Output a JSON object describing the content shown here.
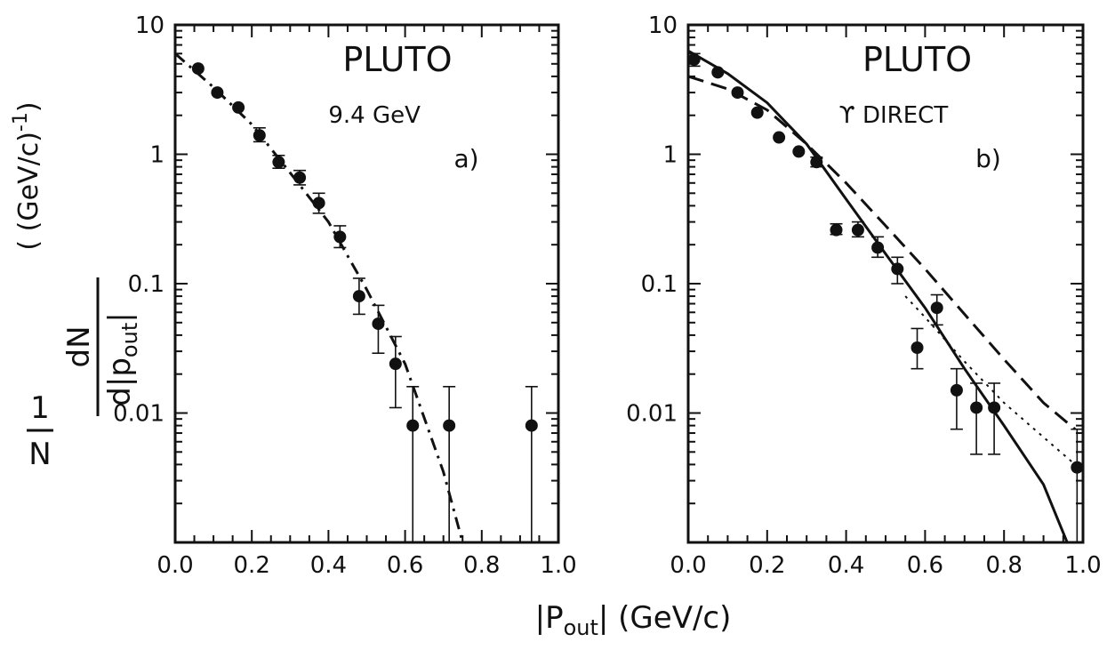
{
  "figure": {
    "ylabel": {
      "one": "1",
      "N": "N",
      "dN": "dN",
      "dpout": "d|p",
      "dpout_sub": "out",
      "dpout_end": "|",
      "units": "( (GeV/c)",
      "units_exp": "-1",
      "units_close": ")"
    },
    "xlabel": {
      "prefix": "|P",
      "sub": "out",
      "suffix": "| (GeV/c)"
    }
  },
  "chart_data": [
    {
      "type": "scatter",
      "panel": "a",
      "title_lines": [
        "PLUTO",
        "9.4 GeV",
        "a)"
      ],
      "x_ticks": [
        "0.0",
        "0.2",
        "0.4",
        "0.6",
        "0.8",
        "1.0"
      ],
      "y_ticks": [
        "0.01",
        "0.1",
        "1",
        "10"
      ],
      "xlim": [
        0.0,
        1.0
      ],
      "ylim": [
        0.001,
        10
      ],
      "yscale": "log",
      "series": [
        {
          "style": "points",
          "points": [
            {
              "x": 0.06,
              "y": 4.6
            },
            {
              "x": 0.11,
              "y": 3.0
            },
            {
              "x": 0.165,
              "y": 2.3
            },
            {
              "x": 0.22,
              "y": 1.4,
              "err": [
                1.25,
                1.6
              ]
            },
            {
              "x": 0.27,
              "y": 0.87,
              "err": [
                0.78,
                0.98
              ]
            },
            {
              "x": 0.325,
              "y": 0.66,
              "err": [
                0.58,
                0.75
              ]
            },
            {
              "x": 0.375,
              "y": 0.42,
              "err": [
                0.35,
                0.5
              ]
            },
            {
              "x": 0.43,
              "y": 0.23,
              "err": [
                0.19,
                0.28
              ]
            },
            {
              "x": 0.48,
              "y": 0.08,
              "err": [
                0.058,
                0.11
              ]
            },
            {
              "x": 0.53,
              "y": 0.049,
              "err": [
                0.029,
                0.068
              ]
            },
            {
              "x": 0.575,
              "y": 0.024,
              "err": [
                0.011,
                0.039
              ]
            },
            {
              "x": 0.62,
              "y": 0.008,
              "err": [
                0.001,
                0.016
              ]
            },
            {
              "x": 0.715,
              "y": 0.008,
              "err": [
                0.001,
                0.016
              ]
            },
            {
              "x": 0.93,
              "y": 0.008,
              "err": [
                0.001,
                0.016
              ]
            }
          ]
        },
        {
          "style": "dash-dot",
          "points": [
            {
              "x": 0.0,
              "y": 6.0
            },
            {
              "x": 0.1,
              "y": 3.3
            },
            {
              "x": 0.2,
              "y": 1.7
            },
            {
              "x": 0.3,
              "y": 0.72
            },
            {
              "x": 0.4,
              "y": 0.3
            },
            {
              "x": 0.5,
              "y": 0.09
            },
            {
              "x": 0.6,
              "y": 0.024
            },
            {
              "x": 0.7,
              "y": 0.0035
            },
            {
              "x": 0.75,
              "y": 0.001
            }
          ]
        }
      ]
    },
    {
      "type": "scatter",
      "panel": "b",
      "title_lines": [
        "PLUTO",
        "ϒ DIRECT",
        "b)"
      ],
      "x_ticks": [
        "0.0",
        "0.2",
        "0.4",
        "0.6",
        "0.8",
        "1.0"
      ],
      "y_ticks": [
        "0.01",
        "0.1",
        "1",
        "10"
      ],
      "xlim": [
        0.0,
        1.0
      ],
      "ylim": [
        0.001,
        10
      ],
      "yscale": "log",
      "series": [
        {
          "style": "points",
          "points": [
            {
              "x": 0.015,
              "y": 5.4,
              "err": [
                4.8,
                6.0
              ]
            },
            {
              "x": 0.075,
              "y": 4.3
            },
            {
              "x": 0.125,
              "y": 3.0
            },
            {
              "x": 0.175,
              "y": 2.1
            },
            {
              "x": 0.23,
              "y": 1.35
            },
            {
              "x": 0.28,
              "y": 1.05
            },
            {
              "x": 0.325,
              "y": 0.87,
              "err": [
                0.8,
                0.95
              ]
            },
            {
              "x": 0.375,
              "y": 0.26,
              "err": [
                0.24,
                0.29
              ]
            },
            {
              "x": 0.43,
              "y": 0.26,
              "err": [
                0.23,
                0.3
              ]
            },
            {
              "x": 0.48,
              "y": 0.19,
              "err": [
                0.16,
                0.23
              ]
            },
            {
              "x": 0.53,
              "y": 0.13,
              "err": [
                0.1,
                0.16
              ]
            },
            {
              "x": 0.58,
              "y": 0.032,
              "err": [
                0.022,
                0.045
              ]
            },
            {
              "x": 0.63,
              "y": 0.065,
              "err": [
                0.048,
                0.082
              ]
            },
            {
              "x": 0.68,
              "y": 0.015,
              "err": [
                0.0075,
                0.022
              ]
            },
            {
              "x": 0.73,
              "y": 0.011,
              "err": [
                0.0048,
                0.017
              ]
            },
            {
              "x": 0.775,
              "y": 0.011,
              "err": [
                0.0048,
                0.017
              ]
            },
            {
              "x": 0.985,
              "y": 0.0038,
              "err": [
                0.001,
                0.0075
              ]
            }
          ]
        },
        {
          "style": "solid",
          "points": [
            {
              "x": 0.0,
              "y": 6.3
            },
            {
              "x": 0.1,
              "y": 4.2
            },
            {
              "x": 0.2,
              "y": 2.5
            },
            {
              "x": 0.3,
              "y": 1.2
            },
            {
              "x": 0.4,
              "y": 0.45
            },
            {
              "x": 0.5,
              "y": 0.17
            },
            {
              "x": 0.6,
              "y": 0.065
            },
            {
              "x": 0.7,
              "y": 0.022
            },
            {
              "x": 0.8,
              "y": 0.008
            },
            {
              "x": 0.9,
              "y": 0.0028
            },
            {
              "x": 0.96,
              "y": 0.001
            }
          ]
        },
        {
          "style": "dashed",
          "points": [
            {
              "x": 0.0,
              "y": 4.0
            },
            {
              "x": 0.1,
              "y": 3.2
            },
            {
              "x": 0.2,
              "y": 2.2
            },
            {
              "x": 0.3,
              "y": 1.2
            },
            {
              "x": 0.4,
              "y": 0.6
            },
            {
              "x": 0.5,
              "y": 0.28
            },
            {
              "x": 0.6,
              "y": 0.13
            },
            {
              "x": 0.7,
              "y": 0.058
            },
            {
              "x": 0.8,
              "y": 0.026
            },
            {
              "x": 0.9,
              "y": 0.012
            },
            {
              "x": 0.98,
              "y": 0.0075
            }
          ]
        },
        {
          "style": "dotted",
          "points": [
            {
              "x": 0.55,
              "y": 0.08
            },
            {
              "x": 0.6,
              "y": 0.055
            },
            {
              "x": 0.7,
              "y": 0.025
            },
            {
              "x": 0.8,
              "y": 0.012
            },
            {
              "x": 0.9,
              "y": 0.0065
            },
            {
              "x": 0.98,
              "y": 0.004
            }
          ]
        }
      ]
    }
  ]
}
